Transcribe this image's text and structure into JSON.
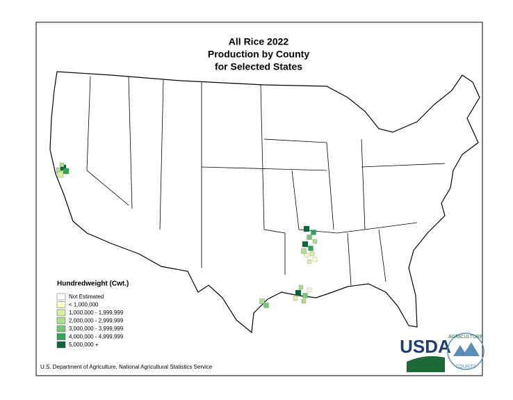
{
  "header": {
    "title_lines": [
      "All Rice 2022",
      "Production by County",
      "for Selected States"
    ]
  },
  "legend": {
    "title": "Hundredweight (Cwt.)",
    "items": [
      {
        "label": "Not Estimated",
        "color": "#ffffff"
      },
      {
        "label": "< 1,000,000",
        "color": "#ffffcc"
      },
      {
        "label": "1,000,000 - 1,999,999",
        "color": "#d9f0a3"
      },
      {
        "label": "2,000,000 - 2,999,999",
        "color": "#addd8e"
      },
      {
        "label": "3,000,000 - 3,999,999",
        "color": "#78c679"
      },
      {
        "label": "4,000,000 - 4,999,999",
        "color": "#31a354"
      },
      {
        "label": "5,000,000 +",
        "color": "#006837"
      }
    ]
  },
  "footer": {
    "source": "U.S. Department of Agriculture, National Agricultural Statistics Service"
  },
  "logo": {
    "usda": "USDA",
    "arc_top": "AGRICULTURE",
    "arc_bottom": "COUNTS"
  }
}
